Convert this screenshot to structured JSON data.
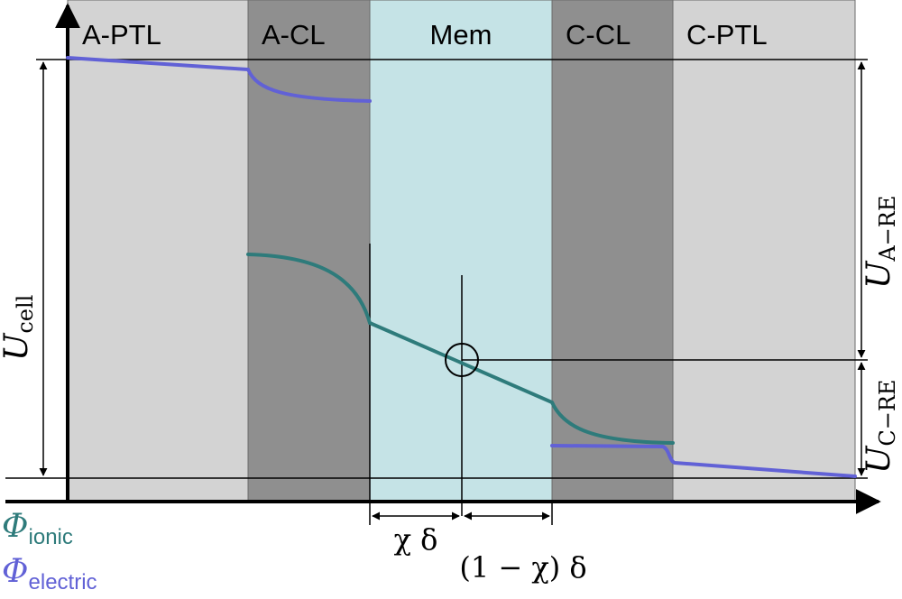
{
  "layers": [
    {
      "key": "a_ptl",
      "label": "A-PTL",
      "fill": "#d3d3d3"
    },
    {
      "key": "a_cl",
      "label": "A-CL",
      "fill": "#8f8f8f"
    },
    {
      "key": "mem",
      "label": "Mem",
      "fill": "#c5e3e6"
    },
    {
      "key": "c_cl",
      "label": "C-CL",
      "fill": "#8f8f8f"
    },
    {
      "key": "c_ptl",
      "label": "C-PTL",
      "fill": "#d3d3d3"
    }
  ],
  "colors": {
    "ionic": "#2e7b7b",
    "electric": "#6161d6",
    "axis": "#000000"
  },
  "labels": {
    "u_cell": {
      "main": "U",
      "sub": "cell"
    },
    "u_a_re": {
      "main": "U",
      "sub": "A−RE"
    },
    "u_c_re": {
      "main": "U",
      "sub": "C−RE"
    },
    "chi_delta": "χ δ",
    "one_minus_chi_delta": "(1 − χ) δ"
  },
  "legend": {
    "ionic": {
      "symbol": "Φ",
      "sub": "ionic"
    },
    "electric": {
      "symbol": "Φ",
      "sub": "electric"
    }
  }
}
